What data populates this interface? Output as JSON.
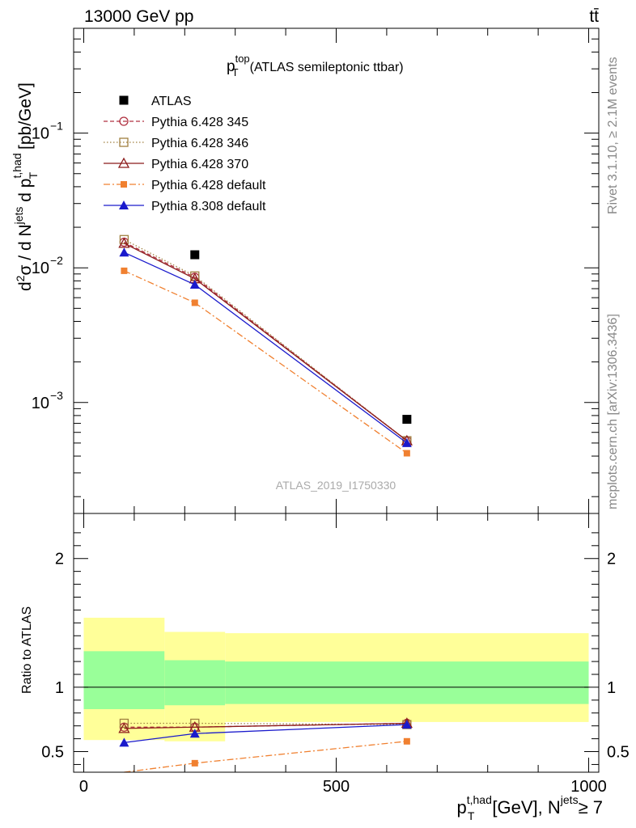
{
  "header": {
    "left": "13000 GeV pp",
    "right": "tt̄"
  },
  "side_labels": {
    "rivet": "Rivet 3.1.10, ≥ 2.1M events",
    "mcplots": "mcplots.cern.ch [arXiv:1306.3436]"
  },
  "chart_data": [
    {
      "type": "scatter",
      "title_main": "p",
      "title_sup": "top",
      "title_sub": "T",
      "title_rest": "(ATLAS semileptonic ttbar)",
      "ylabel": "d²σ / d N^jets d p_T^t,had [pb/GeV]",
      "yscale": "log",
      "ylim": [
        0.00015,
        0.6
      ],
      "xlim": [
        -20,
        1020
      ],
      "yticks": [
        {
          "value": 0.1,
          "base": "10",
          "exp": "−1"
        },
        {
          "value": 0.01,
          "base": "10",
          "exp": "−2"
        },
        {
          "value": 0.001,
          "base": "10",
          "exp": "−3"
        }
      ],
      "watermark": "ATLAS_2019_I1750330",
      "legend_position": "top-left",
      "data": {
        "name": "ATLAS",
        "color": "#000000",
        "x": [
          220,
          640
        ],
        "y": [
          0.0125,
          0.00075
        ]
      },
      "series": [
        {
          "name": "Pythia 6.428 345",
          "color": "#b03040",
          "dash": "5,3",
          "marker": "circle-open",
          "x": [
            80,
            220,
            640
          ],
          "y": [
            0.0155,
            0.0085,
            0.00052
          ]
        },
        {
          "name": "Pythia 6.428 346",
          "color": "#a08040",
          "dash": "1.5,2.5",
          "marker": "square-open",
          "x": [
            80,
            220,
            640
          ],
          "y": [
            0.0162,
            0.0087,
            0.00052
          ]
        },
        {
          "name": "Pythia 6.428 370",
          "color": "#8b1a1a",
          "dash": "",
          "marker": "triangle-open",
          "x": [
            80,
            220,
            640
          ],
          "y": [
            0.0152,
            0.0083,
            0.00052
          ]
        },
        {
          "name": "Pythia 6.428 default",
          "color": "#f08030",
          "dash": "8,3,2,3",
          "marker": "square-filled",
          "x": [
            80,
            220,
            640
          ],
          "y": [
            0.0095,
            0.0055,
            0.00042
          ]
        },
        {
          "name": "Pythia 8.308 default",
          "color": "#1a1acc",
          "dash": "",
          "marker": "triangle-filled",
          "x": [
            80,
            220,
            640
          ],
          "y": [
            0.013,
            0.0075,
            0.0005
          ]
        }
      ]
    },
    {
      "type": "line",
      "ylabel": "Ratio to ATLAS",
      "xlabel_main": "p",
      "xlabel_sup": "t,had",
      "xlabel_sub": "T",
      "xlabel_rest": "[GeV], N",
      "xlabel_jets": "jets",
      "xlabel_cut": "≥ 7",
      "ylim": [
        0.34,
        2.35
      ],
      "xlim": [
        -20,
        1020
      ],
      "xticks": [
        "0",
        "500",
        "1000"
      ],
      "yticks": [
        "0.5",
        "1",
        "2"
      ],
      "bands": [
        {
          "x0": 0,
          "x1": 160,
          "yellow": [
            0.59,
            1.54
          ],
          "green": [
            0.83,
            1.28
          ]
        },
        {
          "x0": 160,
          "x1": 280,
          "yellow": [
            0.58,
            1.43
          ],
          "green": [
            0.86,
            1.21
          ]
        },
        {
          "x0": 280,
          "x1": 1000,
          "yellow": [
            0.73,
            1.42
          ],
          "green": [
            0.87,
            1.2
          ]
        }
      ],
      "series": [
        {
          "name": "Pythia 6.428 345",
          "x": [
            80,
            220,
            640
          ],
          "y": [
            0.69,
            0.69,
            0.72
          ]
        },
        {
          "name": "Pythia 6.428 346",
          "x": [
            80,
            220,
            640
          ],
          "y": [
            0.72,
            0.72,
            0.71
          ]
        },
        {
          "name": "Pythia 6.428 370",
          "x": [
            80,
            220,
            640
          ],
          "y": [
            0.68,
            0.69,
            0.72
          ]
        },
        {
          "name": "Pythia 6.428 default",
          "x": [
            80,
            220,
            640
          ],
          "y": [
            0.34,
            0.41,
            0.58
          ]
        },
        {
          "name": "Pythia 8.308 default",
          "x": [
            80,
            220,
            640
          ],
          "y": [
            0.57,
            0.64,
            0.71
          ]
        }
      ]
    }
  ]
}
